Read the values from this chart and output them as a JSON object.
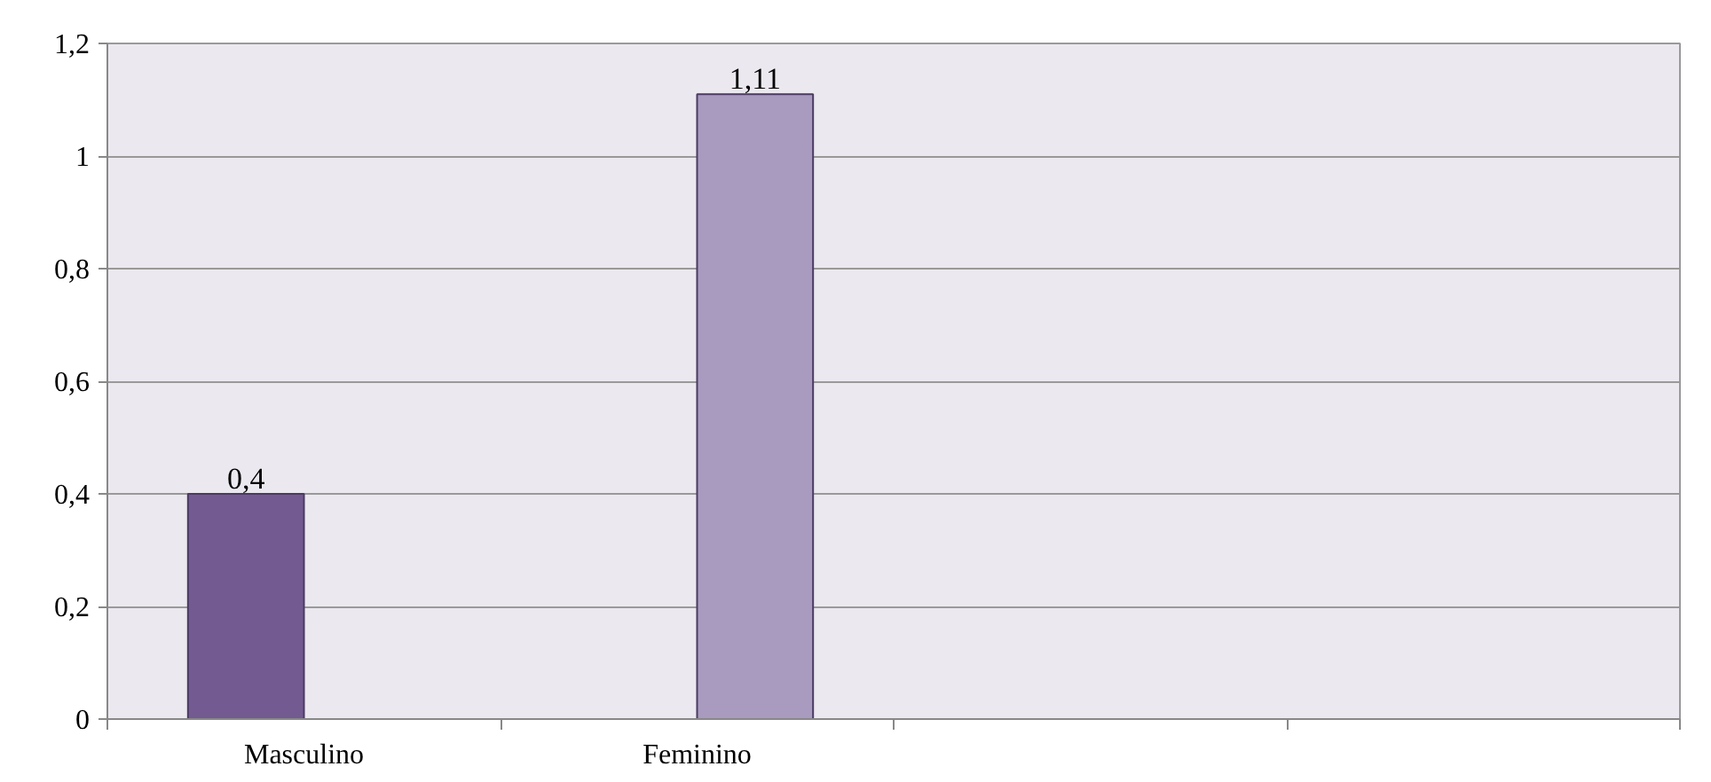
{
  "chart_data": {
    "type": "bar",
    "categories": [
      "Masculino",
      "Feminino",
      null,
      null
    ],
    "series": [
      {
        "color": "#735a91",
        "values": [
          0.4,
          null,
          null,
          null
        ],
        "value_labels": [
          "0,4",
          null,
          null,
          null
        ]
      },
      {
        "color": "#a99bbf",
        "values": [
          null,
          1.11,
          null,
          null
        ],
        "value_labels": [
          null,
          "1,11",
          null,
          null
        ]
      }
    ],
    "ylim": [
      0,
      1.2
    ],
    "yticks": [
      {
        "value": 0,
        "label": "0"
      },
      {
        "value": 0.2,
        "label": "0,2"
      },
      {
        "value": 0.4,
        "label": "0,4"
      },
      {
        "value": 0.6,
        "label": "0,6"
      },
      {
        "value": 0.8,
        "label": "0,8"
      },
      {
        "value": 1,
        "label": "1"
      },
      {
        "value": 1.2,
        "label": "1,2"
      }
    ],
    "grid": "y"
  }
}
